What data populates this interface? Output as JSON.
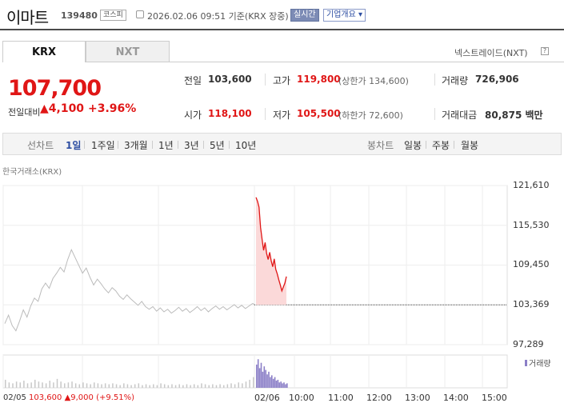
{
  "header": {
    "name": "이마트",
    "code": "139480",
    "market": "코스피",
    "datetime": "2026.02.06 09:51 기준(KRX 장중)",
    "realtime": "실시간",
    "company_info": "기업개요 ▾"
  },
  "tabs": {
    "krx": "KRX",
    "nxt": "NXT",
    "nxt_link": "넥스트레이드(NXT)",
    "help": "?"
  },
  "price": {
    "current": "107,700",
    "prev_label": "전일대비",
    "change": "▲4,100",
    "change_pct": "+3.96%"
  },
  "quote": {
    "prev_close_label": "전일",
    "prev_close": "103,600",
    "high_label": "고가",
    "high": "119,800",
    "upper_limit": "(상한가 134,600)",
    "volume_label": "거래량",
    "volume": "726,906",
    "open_label": "시가",
    "open": "118,100",
    "low_label": "저가",
    "low": "105,500",
    "lower_limit": "(하한가 72,600)",
    "amount_label": "거래대금",
    "amount": "80,875 백만"
  },
  "periods": {
    "line_label": "선차트",
    "items": [
      "1일",
      "1주일",
      "3개월",
      "1년",
      "3년",
      "5년",
      "10년"
    ],
    "active": 0,
    "candle_label": "봉차트",
    "candle_items": [
      "일봉",
      "주봉",
      "월봉"
    ]
  },
  "chart_data": {
    "type": "line",
    "title": "한국거래소(KRX)",
    "yticks": [
      "121,610",
      "115,530",
      "109,450",
      "103,369",
      "97,289"
    ],
    "ylim": [
      97289,
      121610
    ],
    "xticks": [
      "02/05",
      "02/06",
      "10:00",
      "11:00",
      "12:00",
      "13:00",
      "14:00",
      "15:00"
    ],
    "baseline": 103369,
    "volume_label": "거래량",
    "series_prev": [
      100500,
      101800,
      100200,
      99400,
      100900,
      102600,
      101500,
      103200,
      104400,
      103900,
      105800,
      106700,
      105900,
      107400,
      108200,
      109100,
      108400,
      110300,
      111800,
      110600,
      109400,
      108200,
      109000,
      107600,
      106400,
      107300,
      106600,
      105800,
      105200,
      106000,
      105500,
      104700,
      104200,
      104900,
      104300,
      103800,
      103300,
      103900,
      103100,
      102700,
      103100,
      102400,
      102900,
      102300,
      102700,
      102100,
      102500,
      103000,
      102400,
      102800,
      102200,
      102600,
      103100,
      102500,
      102900,
      102300,
      102800,
      103200,
      102700,
      103100,
      102600,
      103000,
      103400,
      102900,
      103300,
      102800,
      103200,
      103600
    ],
    "series_today": [
      119800,
      119200,
      118300,
      115200,
      113400,
      111700,
      112900,
      111200,
      110300,
      111400,
      110100,
      109200,
      110400,
      108800,
      108100,
      107200,
      106400,
      105500,
      106100,
      106700,
      107700
    ],
    "volume_prev": [
      9,
      6,
      5,
      7,
      6,
      8,
      5,
      6,
      9,
      7,
      6,
      5,
      8,
      6,
      10,
      7,
      5,
      6,
      7,
      5,
      4,
      6,
      5,
      4,
      6,
      5,
      4,
      5,
      4,
      5,
      4,
      3,
      5,
      4,
      3,
      4,
      5,
      3,
      4,
      3,
      4,
      3,
      5,
      4,
      3,
      4,
      3,
      4,
      3,
      4,
      3,
      4,
      3,
      5,
      4,
      3,
      4,
      3,
      4,
      3,
      4,
      5,
      4,
      6,
      5,
      7,
      9,
      12
    ],
    "volume_today": [
      26,
      32,
      22,
      28,
      18,
      24,
      20,
      15,
      18,
      12,
      14,
      10,
      12,
      8,
      9,
      6,
      7,
      5,
      6,
      4,
      5
    ]
  },
  "bottom": {
    "date": "02/05",
    "price": "103,600",
    "change": "▲9,000",
    "pct": "(+9.51%)"
  },
  "colors": {
    "up": "#e01616",
    "accent": "#2d4ea2",
    "volume": "#8b7fc7"
  }
}
